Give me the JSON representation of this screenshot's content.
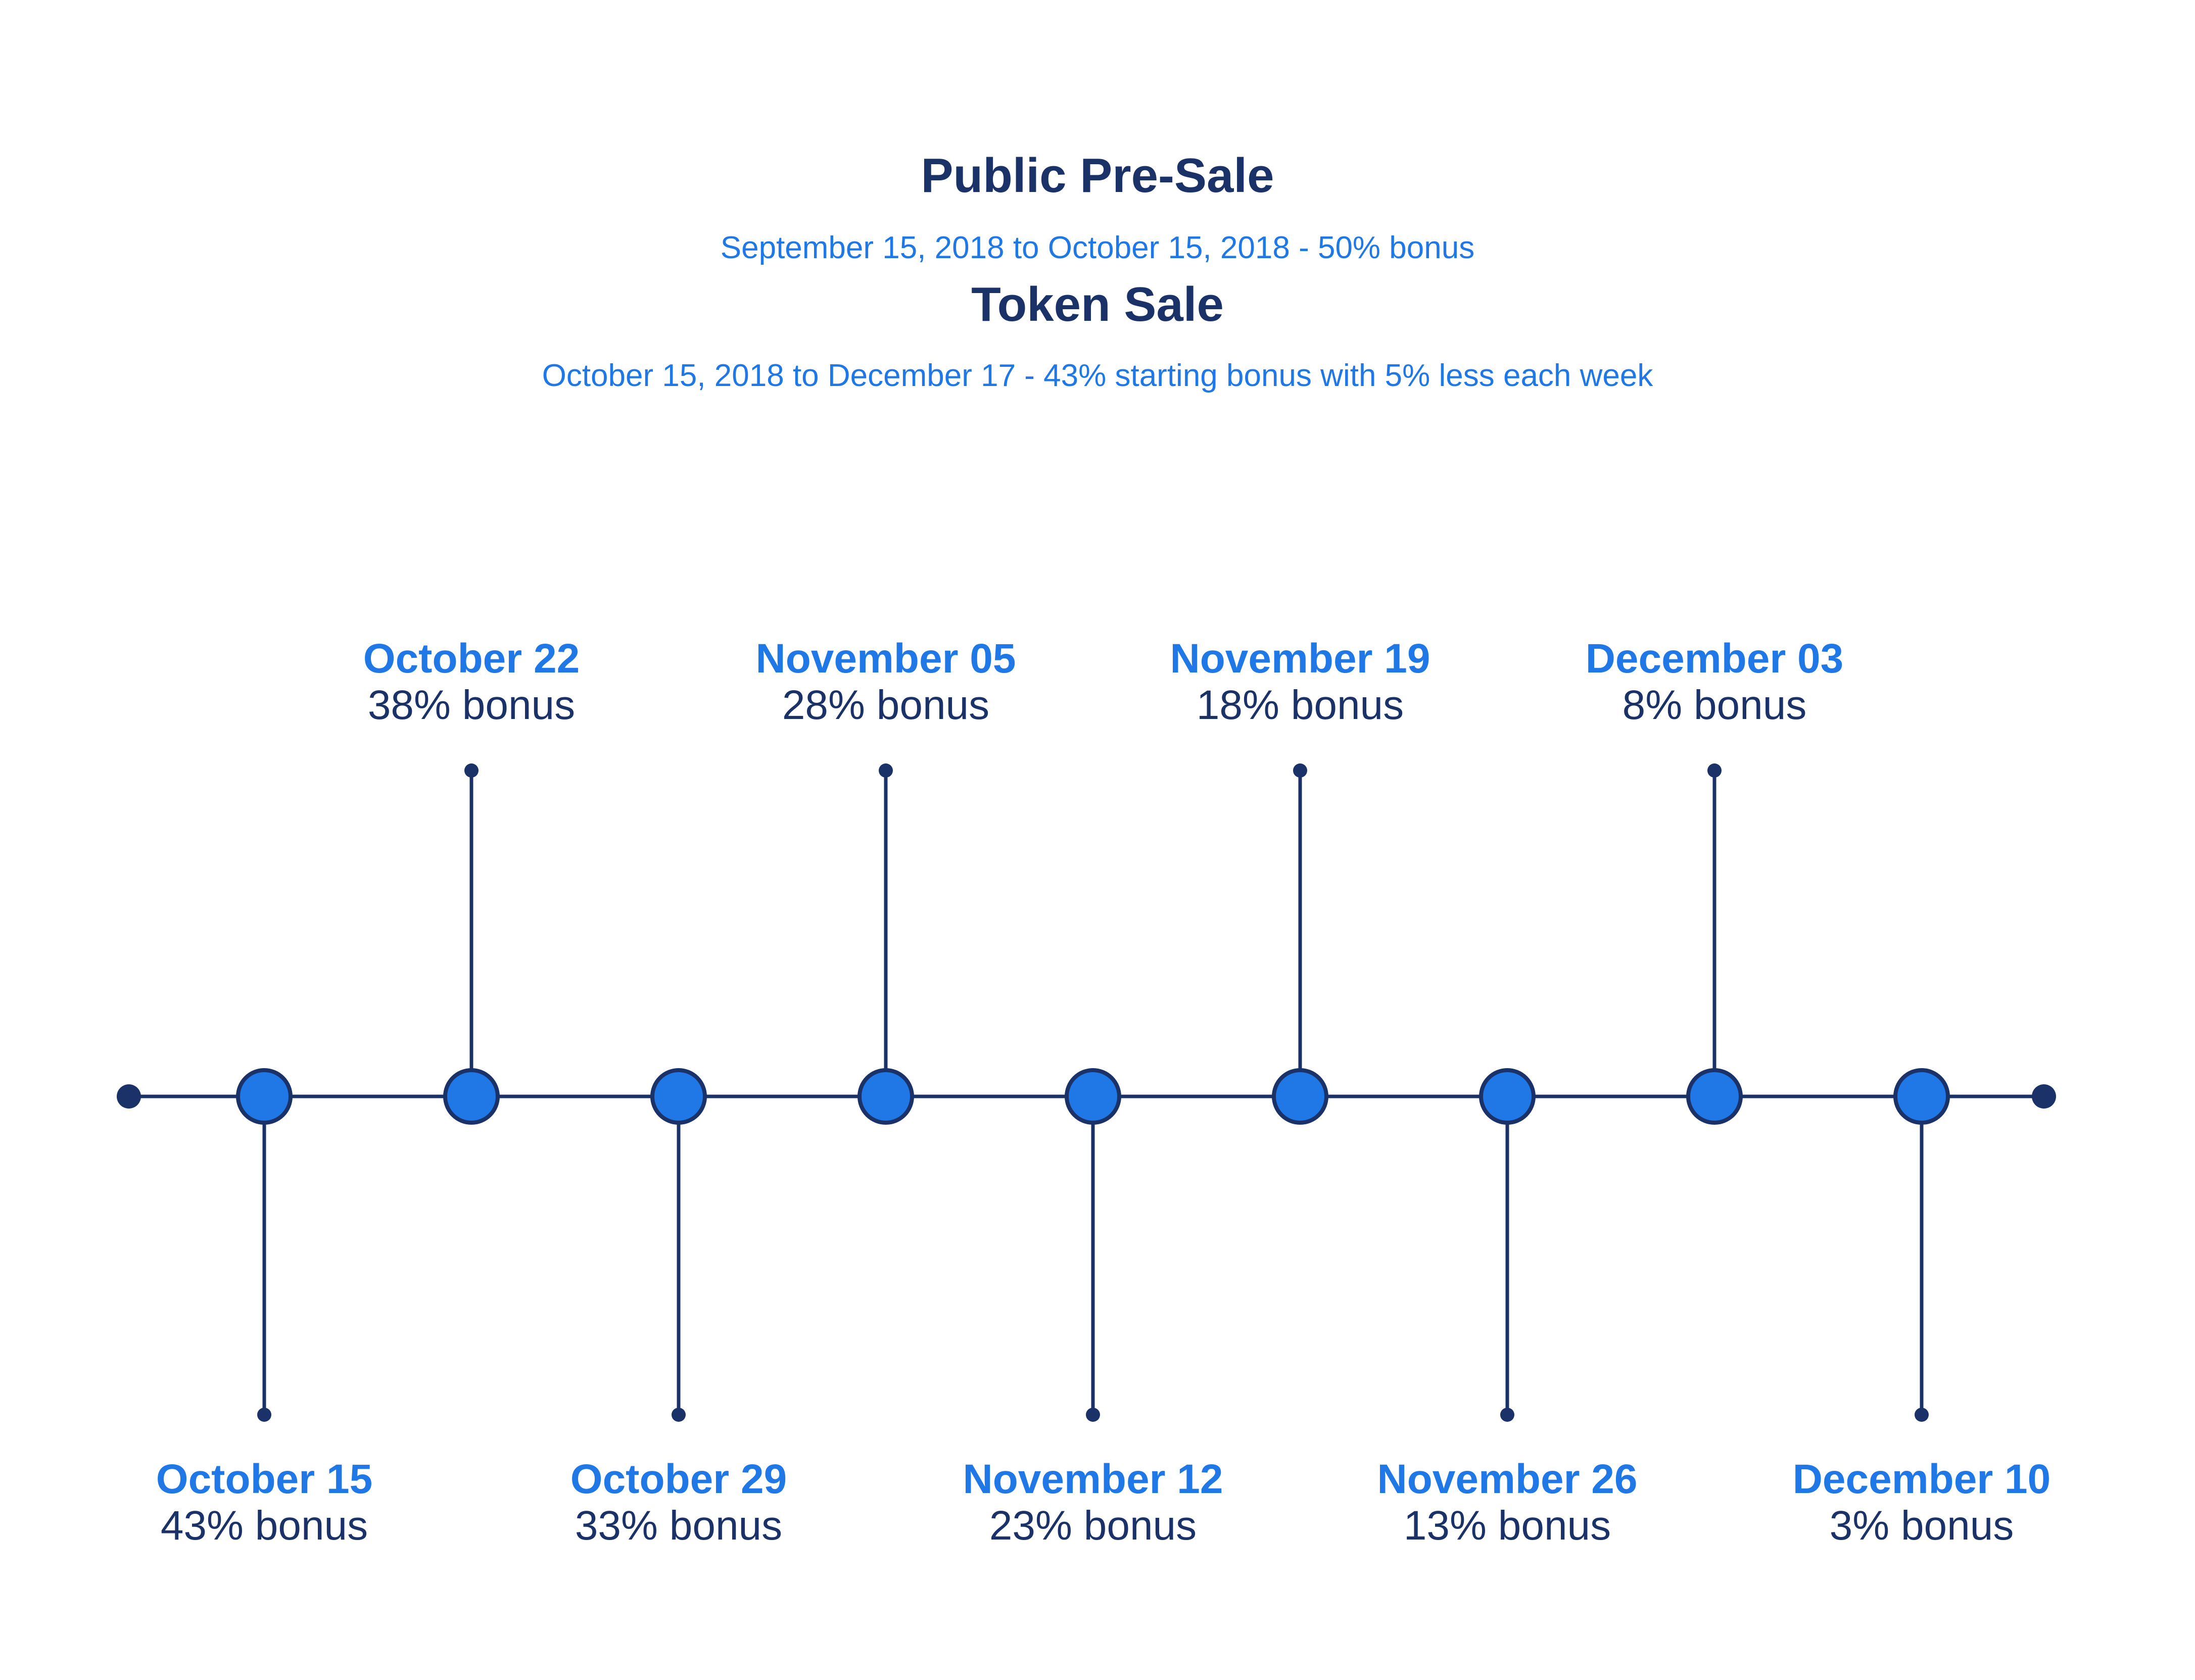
{
  "header": {
    "presale_title": "Public Pre-Sale",
    "presale_subtitle": "September 15, 2018 to October 15, 2018 - 50% bonus",
    "token_title": "Token Sale",
    "token_subtitle": "October 15, 2018 to December 17 - 43% starting bonus with 5% less each week"
  },
  "colors": {
    "navy": "#1b3268",
    "blue": "#1f78e6"
  },
  "milestones": [
    {
      "date": "October 15",
      "bonus": "43% bonus",
      "side": "below"
    },
    {
      "date": "October 22",
      "bonus": "38% bonus",
      "side": "above"
    },
    {
      "date": "October 29",
      "bonus": "33% bonus",
      "side": "below"
    },
    {
      "date": "November 05",
      "bonus": "28% bonus",
      "side": "above"
    },
    {
      "date": "November 12",
      "bonus": "23% bonus",
      "side": "below"
    },
    {
      "date": "November 19",
      "bonus": "18% bonus",
      "side": "above"
    },
    {
      "date": "November 26",
      "bonus": "13% bonus",
      "side": "below"
    },
    {
      "date": "December 03",
      "bonus": "8% bonus",
      "side": "above"
    },
    {
      "date": "December 10",
      "bonus": "3% bonus",
      "side": "below"
    }
  ]
}
